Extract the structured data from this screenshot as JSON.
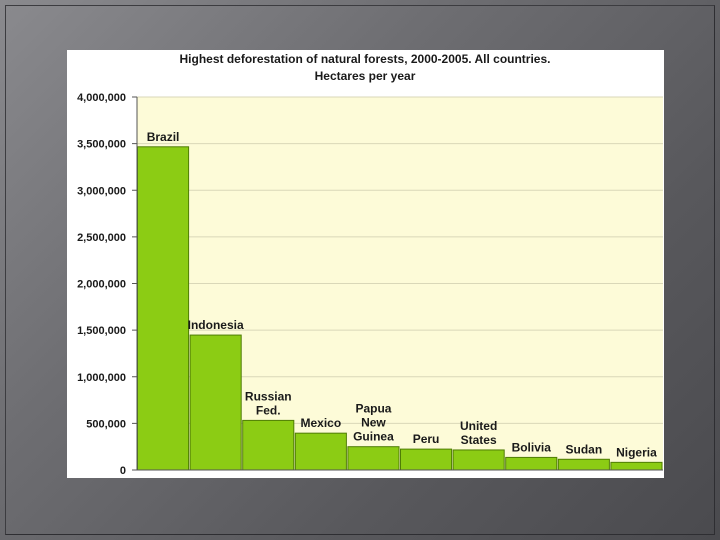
{
  "colors": {
    "bar_fill": "#8ccc14",
    "bar_stroke": "#4f7d05",
    "plot_bg": "#fdfbd8",
    "grid": "#d9d7b8"
  },
  "chart_data": {
    "type": "bar",
    "title": "Highest deforestation of natural forests, 2000-2005.  All countries.",
    "subtitle": "Hectares per year",
    "categories": [
      [
        "Brazil"
      ],
      [
        "Indonesia"
      ],
      [
        "Russian",
        "Fed."
      ],
      [
        "Mexico"
      ],
      [
        "Papua",
        "New",
        "Guinea"
      ],
      [
        "Peru"
      ],
      [
        "United",
        "States"
      ],
      [
        "Bolivia"
      ],
      [
        "Sudan"
      ],
      [
        "Nigeria"
      ]
    ],
    "values": [
      3466000,
      1447000,
      532000,
      395000,
      250000,
      224000,
      215000,
      135000,
      115000,
      82000
    ],
    "ylim": [
      0,
      4000000
    ],
    "yticks": [
      "0",
      "500,000",
      "1,000,000",
      "1,500,000",
      "2,000,000",
      "2,500,000",
      "3,000,000",
      "3,500,000",
      "4,000,000"
    ],
    "grid": true,
    "legend": "none"
  }
}
